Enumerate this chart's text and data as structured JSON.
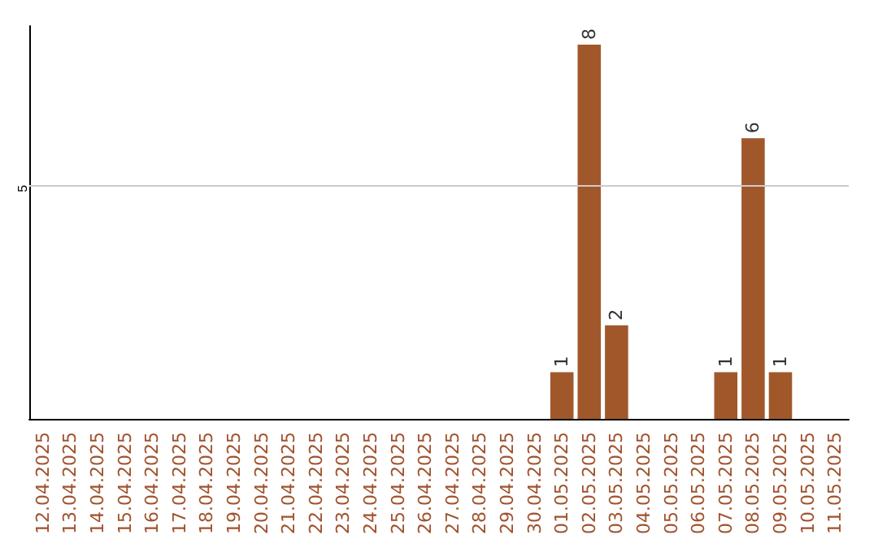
{
  "chart_data": {
    "type": "bar",
    "categories": [
      "12.04.2025",
      "13.04.2025",
      "14.04.2025",
      "15.04.2025",
      "16.04.2025",
      "17.04.2025",
      "18.04.2025",
      "19.04.2025",
      "20.04.2025",
      "21.04.2025",
      "22.04.2025",
      "23.04.2025",
      "24.04.2025",
      "25.04.2025",
      "26.04.2025",
      "27.04.2025",
      "28.04.2025",
      "29.04.2025",
      "30.04.2025",
      "01.05.2025",
      "02.05.2025",
      "03.05.2025",
      "04.05.2025",
      "05.05.2025",
      "06.05.2025",
      "07.05.2025",
      "08.05.2025",
      "09.05.2025",
      "10.05.2025",
      "11.05.2025"
    ],
    "values": [
      null,
      null,
      null,
      null,
      null,
      null,
      null,
      null,
      null,
      null,
      null,
      null,
      null,
      null,
      null,
      null,
      null,
      null,
      null,
      1,
      8,
      2,
      null,
      null,
      null,
      1,
      6,
      1,
      null,
      null
    ],
    "data_labels": true,
    "ylim": [
      0,
      8.4
    ],
    "ref_lines": [
      {
        "axis": "y",
        "value": 5,
        "label": "5",
        "color": "#cccccc"
      }
    ],
    "color": "#a0582a"
  }
}
